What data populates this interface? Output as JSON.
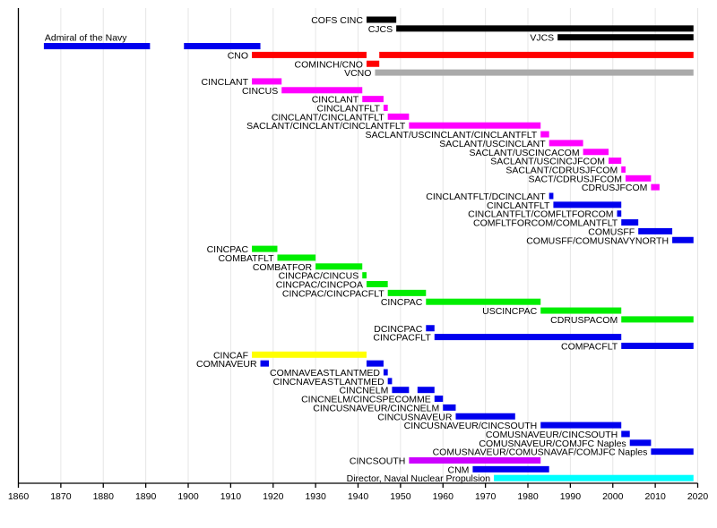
{
  "chart_data": {
    "type": "timeline",
    "title": "",
    "xlabel": "",
    "ylabel": "",
    "xlim": [
      1860,
      2020
    ],
    "x_ticks": [
      1860,
      1870,
      1880,
      1890,
      1900,
      1910,
      1920,
      1930,
      1940,
      1950,
      1960,
      1970,
      1980,
      1990,
      2000,
      2010,
      2020
    ],
    "grid": true,
    "colors": {
      "black": "#000000",
      "blue": "#0000ee",
      "red": "#ff0000",
      "gray": "#aaaaaa",
      "magenta": "#ff00ff",
      "green": "#00ee00",
      "yellow": "#ffff00",
      "violet": "#cc00ff",
      "cyan": "#00ffff"
    },
    "rows": [
      {
        "label": "COFS CINC",
        "color": "black",
        "spans": [
          [
            1942,
            1949
          ]
        ]
      },
      {
        "label": "CJCS",
        "color": "black",
        "spans": [
          [
            1949,
            2019
          ]
        ]
      },
      {
        "label": "VJCS",
        "color": "black",
        "spans": [
          [
            1987,
            2019
          ]
        ]
      },
      {
        "label": "Admiral of the Navy",
        "color": "blue",
        "label_pos": "above",
        "spans": [
          [
            1866,
            1891
          ],
          [
            1899,
            1917
          ]
        ]
      },
      {
        "label": "CNO",
        "color": "red",
        "spans": [
          [
            1915,
            1942
          ],
          [
            1945,
            2019
          ]
        ]
      },
      {
        "label": "COMINCH/CNO",
        "color": "red",
        "spans": [
          [
            1942,
            1945
          ]
        ]
      },
      {
        "label": "VCNO",
        "color": "gray",
        "spans": [
          [
            1944,
            2019
          ]
        ]
      },
      {
        "label": "CINCLANT",
        "color": "magenta",
        "spans": [
          [
            1915,
            1922
          ]
        ]
      },
      {
        "label": "CINCUS",
        "color": "magenta",
        "spans": [
          [
            1922,
            1941
          ]
        ]
      },
      {
        "label": "CINCLANT",
        "color": "magenta",
        "spans": [
          [
            1941,
            1946
          ]
        ]
      },
      {
        "label": "CINCLANTFLT",
        "color": "magenta",
        "spans": [
          [
            1946,
            1947
          ]
        ]
      },
      {
        "label": "CINCLANT/CINCLANTFLT",
        "color": "magenta",
        "spans": [
          [
            1947,
            1952
          ]
        ]
      },
      {
        "label": "SACLANT/CINCLANT/CINCLANTFLT",
        "color": "magenta",
        "spans": [
          [
            1952,
            1983
          ]
        ]
      },
      {
        "label": "SACLANT/USCINCLANT/CINCLANTFLT",
        "color": "magenta",
        "spans": [
          [
            1983,
            1985
          ]
        ]
      },
      {
        "label": "SACLANT/USCINCLANT",
        "color": "magenta",
        "spans": [
          [
            1985,
            1993
          ]
        ]
      },
      {
        "label": "SACLANT/USCINCACOM",
        "color": "magenta",
        "spans": [
          [
            1993,
            1999
          ]
        ]
      },
      {
        "label": "SACLANT/USCINCJFCOM",
        "color": "magenta",
        "spans": [
          [
            1999,
            2002
          ]
        ]
      },
      {
        "label": "SACLANT/CDRUSJFCOM",
        "color": "magenta",
        "spans": [
          [
            2002,
            2003
          ]
        ]
      },
      {
        "label": "SACT/CDRUSJFCOM",
        "color": "magenta",
        "spans": [
          [
            2003,
            2009
          ]
        ]
      },
      {
        "label": "CDRUSJFCOM",
        "color": "magenta",
        "spans": [
          [
            2009,
            2011
          ]
        ]
      },
      {
        "label": "CINCLANTFLT/DCINCLANT",
        "color": "blue",
        "spans": [
          [
            1985,
            1986
          ]
        ]
      },
      {
        "label": "CINCLANTFLT",
        "color": "blue",
        "spans": [
          [
            1986,
            2002
          ]
        ]
      },
      {
        "label": "CINCLANTFLT/COMFLTFORCOM",
        "color": "blue",
        "spans": [
          [
            2001,
            2002
          ]
        ]
      },
      {
        "label": "COMFLTFORCOM/COMLANTFLT",
        "color": "blue",
        "spans": [
          [
            2002,
            2006
          ]
        ]
      },
      {
        "label": "COMUSFF",
        "color": "blue",
        "spans": [
          [
            2006,
            2014
          ]
        ]
      },
      {
        "label": "COMUSFF/COMUSNAVYNORTH",
        "color": "blue",
        "spans": [
          [
            2014,
            2019
          ]
        ]
      },
      {
        "label": "CINCPAC",
        "color": "green",
        "spans": [
          [
            1915,
            1921
          ]
        ]
      },
      {
        "label": "COMBATFLT",
        "color": "green",
        "spans": [
          [
            1921,
            1930
          ]
        ]
      },
      {
        "label": "COMBATFOR",
        "color": "green",
        "spans": [
          [
            1930,
            1941
          ]
        ]
      },
      {
        "label": "CINCPAC/CINCUS",
        "color": "green",
        "spans": [
          [
            1941,
            1942
          ]
        ]
      },
      {
        "label": "CINCPAC/CINCPOA",
        "color": "green",
        "spans": [
          [
            1942,
            1947
          ]
        ]
      },
      {
        "label": "CINCPAC/CINCPACFLT",
        "color": "green",
        "spans": [
          [
            1947,
            1956
          ]
        ]
      },
      {
        "label": "CINCPAC",
        "color": "green",
        "spans": [
          [
            1956,
            1983
          ]
        ]
      },
      {
        "label": "USCINCPAC",
        "color": "green",
        "spans": [
          [
            1983,
            2002
          ]
        ]
      },
      {
        "label": "CDRUSPACOM",
        "color": "green",
        "spans": [
          [
            2002,
            2019
          ]
        ]
      },
      {
        "label": "DCINCPAC",
        "color": "blue",
        "spans": [
          [
            1956,
            1958
          ]
        ]
      },
      {
        "label": "CINCPACFLT",
        "color": "blue",
        "spans": [
          [
            1958,
            2002
          ]
        ]
      },
      {
        "label": "COMPACFLT",
        "color": "blue",
        "spans": [
          [
            2002,
            2019
          ]
        ]
      },
      {
        "label": "CINCAF",
        "color": "yellow",
        "spans": [
          [
            1915,
            1942
          ]
        ]
      },
      {
        "label": "COMNAVEUR",
        "color": "blue",
        "spans": [
          [
            1917,
            1919
          ],
          [
            1942,
            1946
          ]
        ]
      },
      {
        "label": "COMNAVEASTLANTMED",
        "color": "blue",
        "spans": [
          [
            1946,
            1947
          ]
        ]
      },
      {
        "label": "CINCNAVEASTLANTMED",
        "color": "blue",
        "spans": [
          [
            1947,
            1948
          ]
        ]
      },
      {
        "label": "CINCNELM",
        "color": "blue",
        "spans": [
          [
            1948,
            1952
          ],
          [
            1954,
            1958
          ]
        ]
      },
      {
        "label": "CINCNELM/CINCSPECOMME",
        "color": "blue",
        "spans": [
          [
            1958,
            1960
          ]
        ]
      },
      {
        "label": "CINCUSNAVEUR/CINCNELM",
        "color": "blue",
        "spans": [
          [
            1960,
            1963
          ]
        ]
      },
      {
        "label": "CINCUSNAVEUR",
        "color": "blue",
        "spans": [
          [
            1963,
            1977
          ]
        ]
      },
      {
        "label": "CINCUSNAVEUR/CINCSOUTH",
        "color": "blue",
        "spans": [
          [
            1983,
            2002
          ]
        ]
      },
      {
        "label": "COMUSNAVEUR/CINCSOUTH",
        "color": "blue",
        "spans": [
          [
            2002,
            2004
          ]
        ]
      },
      {
        "label": "COMUSNAVEUR/COMJFC Naples",
        "color": "blue",
        "spans": [
          [
            2004,
            2009
          ]
        ]
      },
      {
        "label": "COMUSNAVEUR/COMUSNAVAF/COMJFC Naples",
        "color": "blue",
        "spans": [
          [
            2009,
            2019
          ]
        ]
      },
      {
        "label": "CINCSOUTH",
        "color": "violet",
        "spans": [
          [
            1952,
            1983
          ]
        ]
      },
      {
        "label": "CNM",
        "color": "blue",
        "spans": [
          [
            1967,
            1985
          ]
        ]
      },
      {
        "label": "Director, Naval Nuclear Propulsion",
        "color": "cyan",
        "spans": [
          [
            1972,
            2019
          ]
        ]
      }
    ]
  }
}
